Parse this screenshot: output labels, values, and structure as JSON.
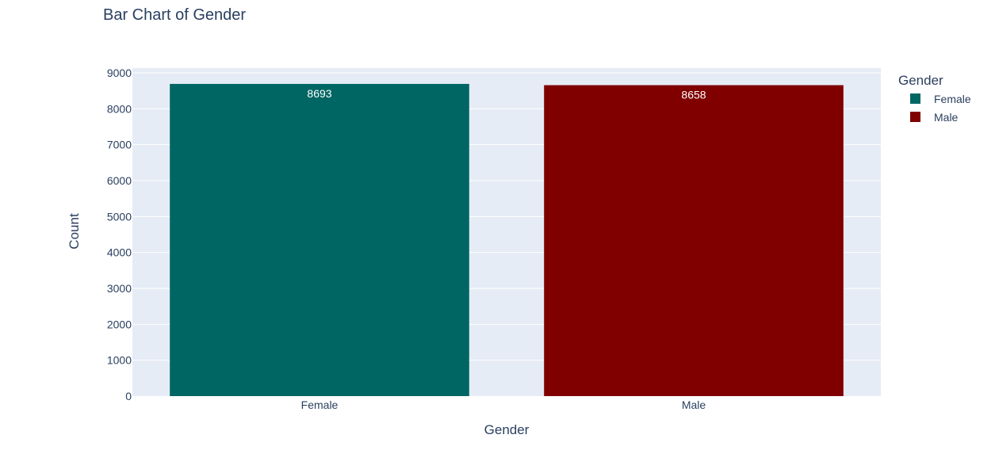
{
  "chart_data": {
    "type": "bar",
    "title": "Bar Chart of Gender",
    "xlabel": "Gender",
    "ylabel": "Count",
    "categories": [
      "Female",
      "Male"
    ],
    "values": [
      8693,
      8658
    ],
    "value_labels": [
      "8693",
      "8658"
    ],
    "colors": [
      "#006663",
      "#800000"
    ],
    "ylim": [
      0,
      9000
    ],
    "yticks": [
      0,
      1000,
      2000,
      3000,
      4000,
      5000,
      6000,
      7000,
      8000,
      9000
    ],
    "ytick_labels": [
      "0",
      "1000",
      "2000",
      "3000",
      "4000",
      "5000",
      "6000",
      "7000",
      "8000",
      "9000"
    ],
    "grid": true,
    "plot_bgcolor": "#e5ecf6",
    "legend": {
      "title": "Gender",
      "position": "top-right",
      "entries": [
        {
          "label": "Female",
          "color": "#006663"
        },
        {
          "label": "Male",
          "color": "#800000"
        }
      ]
    }
  }
}
